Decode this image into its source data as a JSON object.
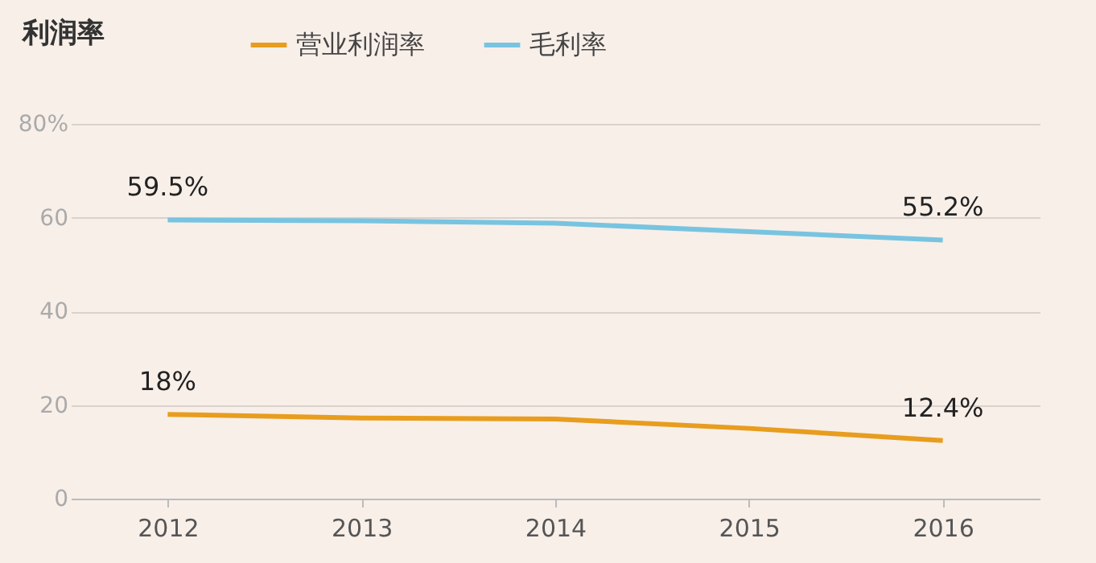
{
  "chart_data": {
    "type": "line",
    "title": "利润率",
    "categories": [
      "2012",
      "2013",
      "2014",
      "2015",
      "2016"
    ],
    "series": [
      {
        "name": "营业利润率",
        "color": "#e89d1e",
        "values": [
          18,
          17.2,
          17,
          15,
          12.4
        ],
        "value_labels": [
          "18%",
          null,
          null,
          null,
          "12.4%"
        ]
      },
      {
        "name": "毛利率",
        "color": "#78c4e0",
        "values": [
          59.5,
          59.3,
          58.8,
          57,
          55.2
        ],
        "value_labels": [
          "59.5%",
          null,
          null,
          null,
          "55.2%"
        ]
      }
    ],
    "ylim": [
      0,
      80
    ],
    "yticks": [
      0,
      20,
      40,
      60,
      {
        "value": 80,
        "label": "80%"
      }
    ],
    "grid": "y",
    "legend": "top",
    "marker": "none",
    "line_style": "solid"
  }
}
